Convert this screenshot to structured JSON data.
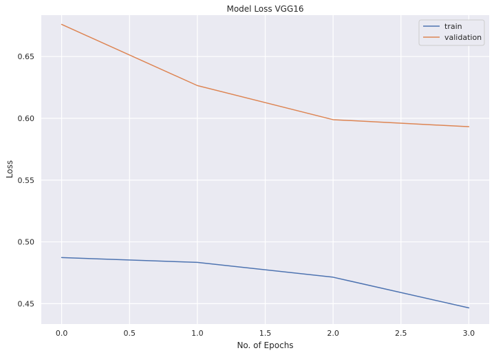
{
  "chart_data": {
    "type": "line",
    "title": "Model Loss VGG16",
    "xlabel": "No. of Epochs",
    "ylabel": "Loss",
    "x": [
      0,
      1,
      2,
      3
    ],
    "xlim": [
      -0.15,
      3.15
    ],
    "ylim": [
      0.4335,
      0.6835
    ],
    "xticks": [
      0.0,
      0.5,
      1.0,
      1.5,
      2.0,
      2.5,
      3.0
    ],
    "xtick_labels": [
      "0.0",
      "0.5",
      "1.0",
      "1.5",
      "2.0",
      "2.5",
      "3.0"
    ],
    "yticks": [
      0.45,
      0.5,
      0.55,
      0.6,
      0.65
    ],
    "ytick_labels": [
      "0.45",
      "0.50",
      "0.55",
      "0.60",
      "0.65"
    ],
    "grid": true,
    "legend_position": "top-right",
    "series": [
      {
        "name": "train",
        "color": "#4c72b0",
        "values": [
          0.4873,
          0.4834,
          0.4714,
          0.4466
        ]
      },
      {
        "name": "validation",
        "color": "#dd8452",
        "values": [
          0.676,
          0.6265,
          0.5989,
          0.5932
        ]
      }
    ]
  }
}
